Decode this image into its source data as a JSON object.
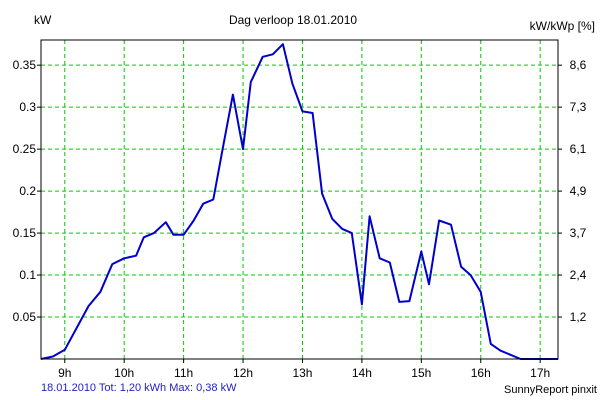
{
  "chart_data": {
    "type": "line",
    "title": "Dag  verloop 18.01.2010",
    "ylabel_left": "kW",
    "ylabel_right": "kW/kWp [%]",
    "footer_left": "18.01.2010 Tot: 1,20 kWh Max: 0,38 kW",
    "footer_right": "SunnyReport pinxit",
    "xlim": [
      8.6,
      17.3
    ],
    "ylim": [
      0,
      0.38
    ],
    "x_ticks": [
      9,
      10,
      11,
      12,
      13,
      14,
      15,
      16,
      17
    ],
    "x_tick_labels": [
      "9h",
      "10h",
      "11h",
      "12h",
      "13h",
      "14h",
      "15h",
      "16h",
      "17h"
    ],
    "y_ticks": [
      0.05,
      0.1,
      0.15,
      0.2,
      0.25,
      0.3,
      0.35
    ],
    "y_tick_labels": [
      "0.05",
      "0.1",
      "0.15",
      "0.2",
      "0.25",
      "0.3",
      "0.35"
    ],
    "y2_ticks": [
      0.05,
      0.1,
      0.15,
      0.2,
      0.25,
      0.3,
      0.35
    ],
    "y2_tick_labels": [
      "1,2",
      "2,4",
      "3,7",
      "4,9",
      "6,1",
      "7,3",
      "8,6"
    ],
    "grid": true,
    "colors": {
      "series": "#0000cc",
      "grid": "#00cc00",
      "frame": "#000000",
      "footer_left": "#1f1fbf"
    },
    "series": [
      {
        "x": [
          8.6,
          8.8,
          9.0,
          9.2,
          9.4,
          9.6,
          9.8,
          10.0,
          10.2,
          10.33,
          10.5,
          10.7,
          10.83,
          11.0,
          11.17,
          11.33,
          11.5,
          11.67,
          11.83,
          12.0,
          12.13,
          12.33,
          12.5,
          12.67,
          12.83,
          13.0,
          13.17,
          13.33,
          13.5,
          13.67,
          13.83,
          14.0,
          14.13,
          14.3,
          14.47,
          14.63,
          14.8,
          15.0,
          15.13,
          15.3,
          15.5,
          15.67,
          15.83,
          16.0,
          16.17,
          16.33,
          16.5,
          16.67,
          16.83,
          17.0,
          17.3
        ],
        "values": [
          0.0,
          0.003,
          0.011,
          0.037,
          0.063,
          0.08,
          0.113,
          0.12,
          0.123,
          0.145,
          0.15,
          0.163,
          0.148,
          0.148,
          0.165,
          0.185,
          0.19,
          0.255,
          0.315,
          0.25,
          0.33,
          0.36,
          0.363,
          0.375,
          0.328,
          0.295,
          0.293,
          0.197,
          0.167,
          0.155,
          0.15,
          0.065,
          0.17,
          0.12,
          0.115,
          0.068,
          0.069,
          0.128,
          0.089,
          0.165,
          0.16,
          0.11,
          0.1,
          0.08,
          0.018,
          0.01,
          0.005,
          0.0,
          0.0,
          0.0,
          0.0
        ]
      }
    ]
  }
}
